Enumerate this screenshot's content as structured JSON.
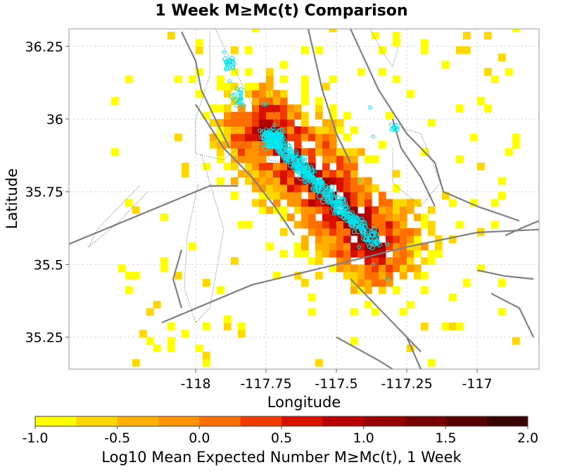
{
  "chart_data": {
    "type": "heatmap",
    "title": "1 Week M≥Mc(t) Comparison",
    "xlabel": "Longitude",
    "ylabel": "Latitude",
    "xlim": [
      -118.45,
      -116.78
    ],
    "ylim": [
      35.14,
      36.31
    ],
    "xticks": [
      -118,
      -117.75,
      -117.5,
      -117.25,
      -117
    ],
    "xtick_labels": [
      "-118",
      "-117.75",
      "-117.5",
      "-117.25",
      "-117"
    ],
    "yticks": [
      35.25,
      35.5,
      35.75,
      36,
      36.25
    ],
    "ytick_labels": [
      "35.25",
      "35.5",
      "35.75",
      "36",
      "36.25"
    ],
    "grid": true,
    "colorbar": {
      "label": "Log10 Mean Expected Number M≥Mc(t), 1 Week",
      "range": [
        -1.0,
        2.0
      ],
      "tick_values": [
        -1.0,
        -0.5,
        0.0,
        0.5,
        1.0,
        1.5,
        2.0
      ],
      "tick_labels": [
        "-1.0",
        "-0.5",
        "0.0",
        "0.5",
        "1.0",
        "1.5",
        "2.0"
      ],
      "colors": [
        "#ffff00",
        "#ffd700",
        "#ffb000",
        "#ff9400",
        "#ff6f00",
        "#f23a00",
        "#d81000",
        "#b80000",
        "#980000",
        "#780000",
        "#580000",
        "#380000",
        "#000000"
      ]
    },
    "grid_cell_deg": 0.025,
    "rupture_trace": {
      "start": [
        -117.75,
        35.96
      ],
      "end": [
        -117.36,
        35.57
      ],
      "peak_log10": 1.3
    },
    "earthquake_marker_color": "#00e5ee",
    "fault_color": "#808080"
  }
}
